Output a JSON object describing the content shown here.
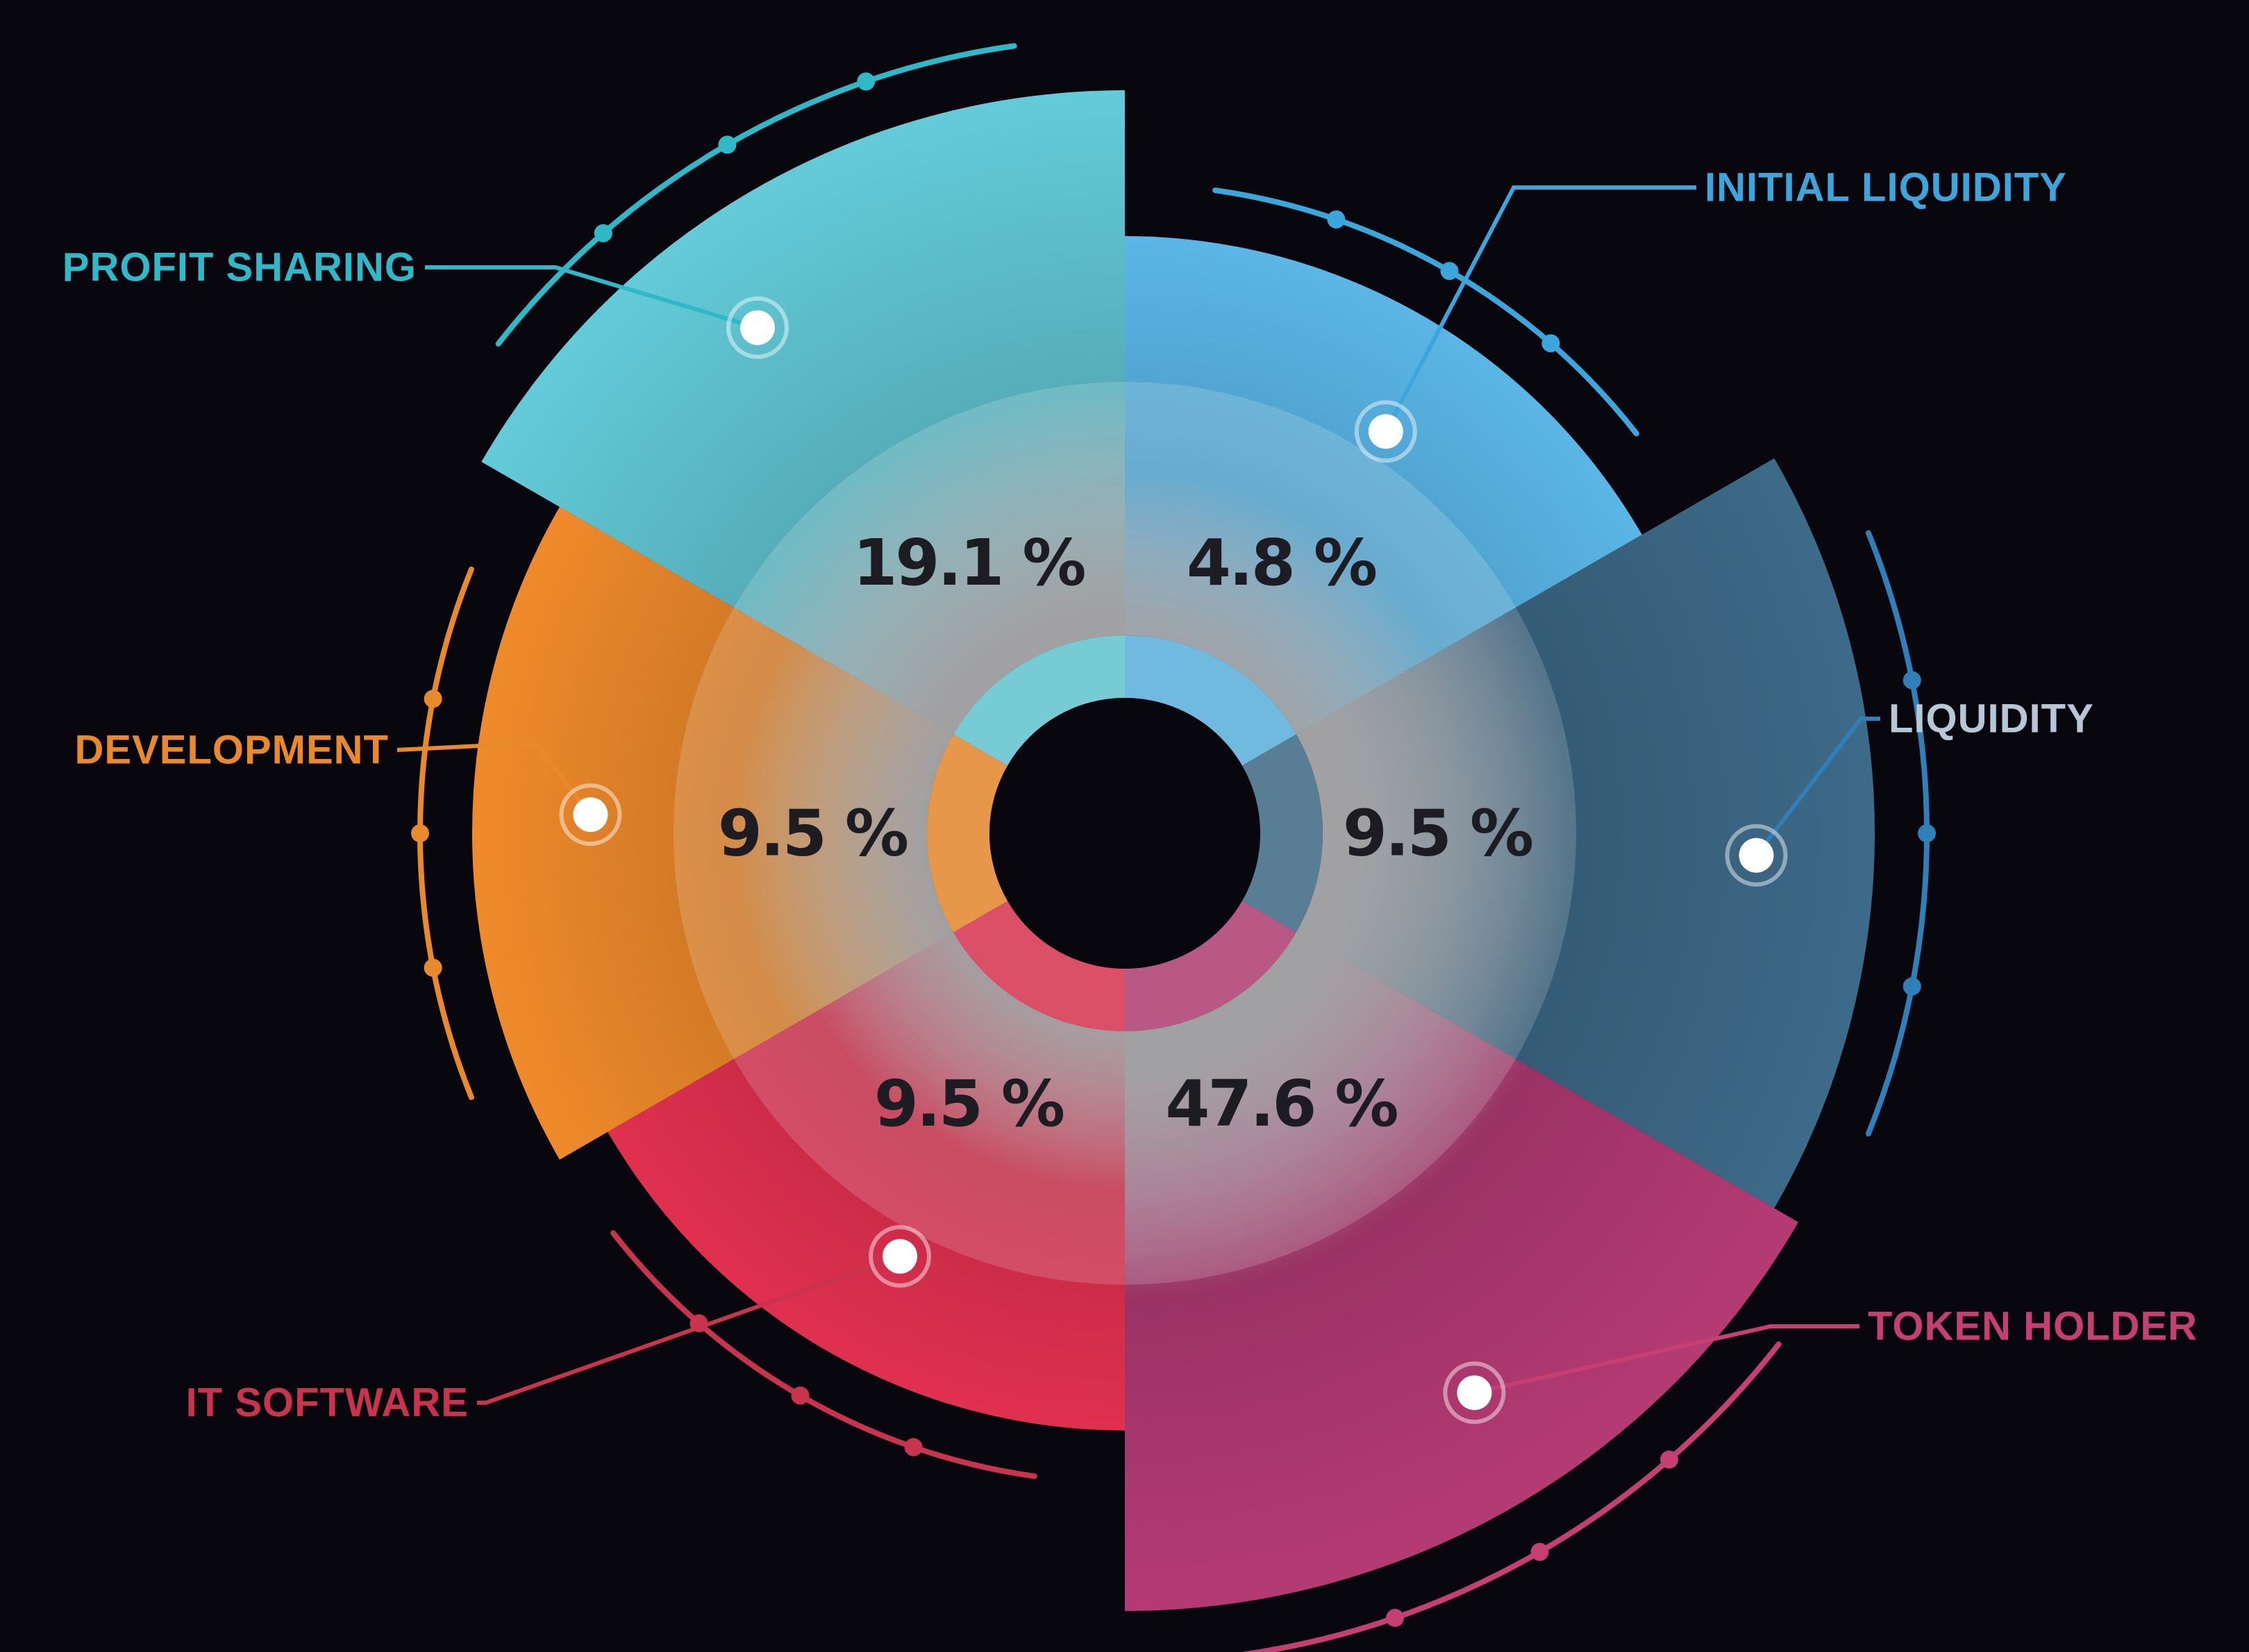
{
  "chart_data": {
    "type": "pie",
    "style": "polar-area-donut",
    "categories": [
      "Initial Liquidity",
      "Liquidity",
      "Token Holder",
      "IT Software",
      "Development",
      "Profit Sharing"
    ],
    "values": [
      4.8,
      9.5,
      47.6,
      9.5,
      9.5,
      19.1
    ],
    "units": "%",
    "title": "",
    "segments": [
      {
        "name": "INITIAL LIQUIDITY",
        "value": 4.8,
        "percent_label": "4.8 %",
        "color": "#5ab6e6",
        "line_color": "#3aa6dc"
      },
      {
        "name": "LIQUIDITY",
        "value": 9.5,
        "percent_label": "9.5 %",
        "color": "#3d6a88",
        "line_color": "#2f7fb8"
      },
      {
        "name": "TOKEN HOLDER",
        "value": 47.6,
        "percent_label": "47.6 %",
        "color": "#b53a74",
        "line_color": "#c53f72"
      },
      {
        "name": "IT SOFTWARE",
        "value": 9.5,
        "percent_label": "9.5 %",
        "color": "#e0304f",
        "line_color": "#c8344d"
      },
      {
        "name": "DEVELOPMENT",
        "value": 9.5,
        "percent_label": "9.5 %",
        "color": "#ef8a2a",
        "line_color": "#e98a2a"
      },
      {
        "name": "PROFIT SHARING",
        "value": 19.1,
        "percent_label": "19.1 %",
        "color": "#63cbd8",
        "line_color": "#2fb8c8"
      }
    ],
    "legend": "callout labels around chart",
    "background": "#07070d"
  }
}
